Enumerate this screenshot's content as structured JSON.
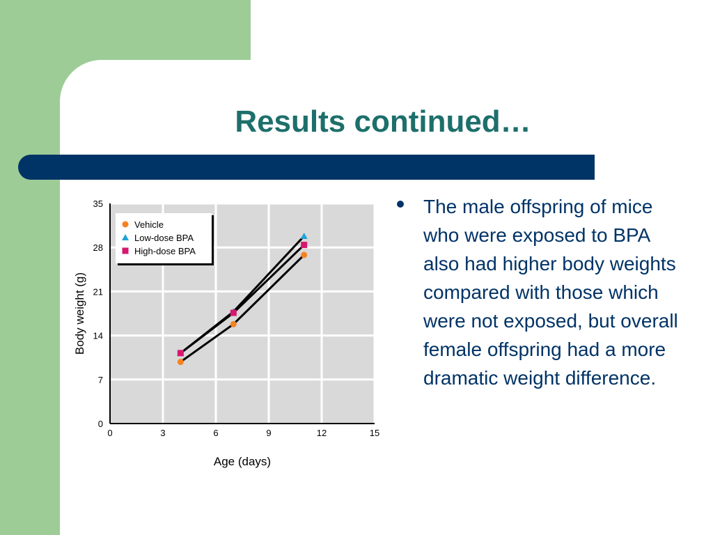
{
  "slide": {
    "title": "Results continued…",
    "bullet": "The male offspring of mice who were exposed to BPA also had higher body weights compared with those which were not exposed, but overall female offspring had a more dramatic weight difference.",
    "colors": {
      "green": "#9dcc97",
      "title": "#1d6f6b",
      "bar": "#003366",
      "text": "#003366"
    }
  },
  "chart_data": {
    "type": "line",
    "xlabel": "Age (days)",
    "ylabel": "Body weight (g)",
    "xlim": [
      0,
      15
    ],
    "ylim": [
      0,
      35
    ],
    "xticks": [
      0,
      3,
      6,
      9,
      12,
      15
    ],
    "yticks": [
      0,
      7,
      14,
      21,
      28,
      35
    ],
    "grid": true,
    "legend_position": "top-left",
    "series": [
      {
        "name": "Vehicle",
        "marker": "circle",
        "color": "#f5821f",
        "x": [
          4,
          7,
          11
        ],
        "y": [
          9.8,
          15.8,
          26.8
        ]
      },
      {
        "name": "Low-dose BPA",
        "marker": "triangle",
        "color": "#1fa3d8",
        "x": [
          4,
          7,
          11
        ],
        "y": [
          11.2,
          17.8,
          29.8
        ]
      },
      {
        "name": "High-dose BPA",
        "marker": "square",
        "color": "#d6186f",
        "x": [
          4,
          7,
          11
        ],
        "y": [
          11.2,
          17.6,
          28.4
        ]
      }
    ]
  }
}
